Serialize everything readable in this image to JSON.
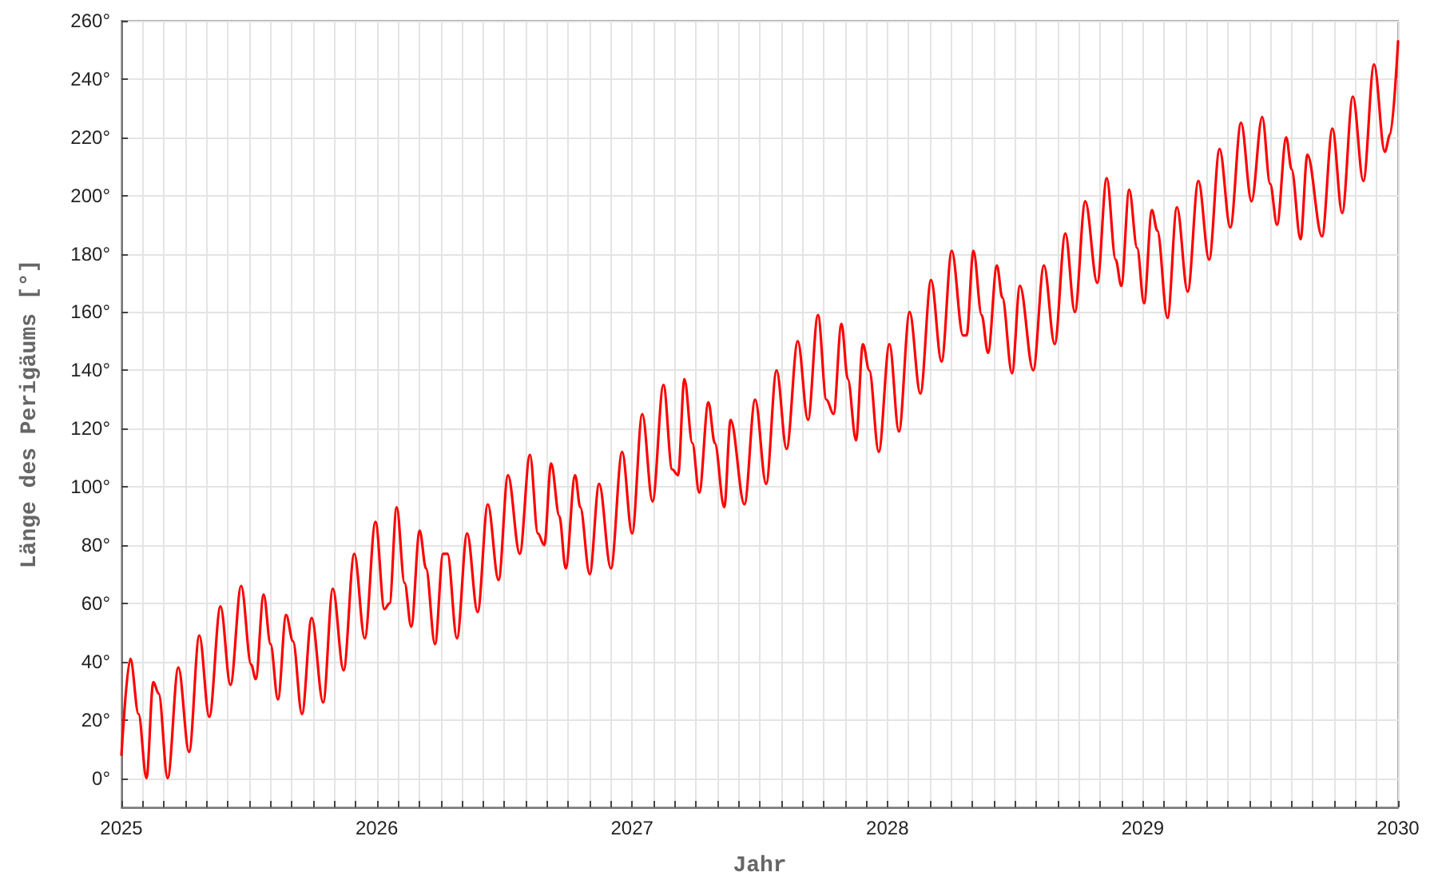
{
  "chart_data": {
    "type": "line",
    "xlabel": "Jahr",
    "ylabel": "Länge des Perigäums [°]",
    "color": "#ff0000",
    "grid": true,
    "xlim": [
      2025,
      2030
    ],
    "xticks": [
      2025,
      {
        "value": 2025.0833,
        "label": null
      },
      {
        "value": 2025.1667,
        "label": null
      },
      {
        "value": 2025.25,
        "label": null
      },
      {
        "value": 2025.3333,
        "label": null
      },
      {
        "value": 2025.4167,
        "label": null
      },
      {
        "value": 2025.5,
        "label": null
      },
      {
        "value": 2025.5833,
        "label": null
      },
      {
        "value": 2025.6667,
        "label": null
      },
      {
        "value": 2025.75,
        "label": null
      },
      {
        "value": 2025.8333,
        "label": null
      },
      {
        "value": 2025.9167,
        "label": null
      },
      2026,
      {
        "value": 2026.0833,
        "label": null
      },
      {
        "value": 2026.1667,
        "label": null
      },
      {
        "value": 2026.25,
        "label": null
      },
      {
        "value": 2026.3333,
        "label": null
      },
      {
        "value": 2026.4167,
        "label": null
      },
      {
        "value": 2026.5,
        "label": null
      },
      {
        "value": 2026.5833,
        "label": null
      },
      {
        "value": 2026.6667,
        "label": null
      },
      {
        "value": 2026.75,
        "label": null
      },
      {
        "value": 2026.8333,
        "label": null
      },
      {
        "value": 2026.9167,
        "label": null
      },
      2027,
      {
        "value": 2027.0833,
        "label": null
      },
      {
        "value": 2027.1667,
        "label": null
      },
      {
        "value": 2027.25,
        "label": null
      },
      {
        "value": 2027.3333,
        "label": null
      },
      {
        "value": 2027.4167,
        "label": null
      },
      {
        "value": 2027.5,
        "label": null
      },
      {
        "value": 2027.5833,
        "label": null
      },
      {
        "value": 2027.6667,
        "label": null
      },
      {
        "value": 2027.75,
        "label": null
      },
      {
        "value": 2027.8333,
        "label": null
      },
      {
        "value": 2027.9167,
        "label": null
      },
      2028,
      {
        "value": 2028.0833,
        "label": null
      },
      {
        "value": 2028.1667,
        "label": null
      },
      {
        "value": 2028.25,
        "label": null
      },
      {
        "value": 2028.3333,
        "label": null
      },
      {
        "value": 2028.4167,
        "label": null
      },
      {
        "value": 2028.5,
        "label": null
      },
      {
        "value": 2028.5833,
        "label": null
      },
      {
        "value": 2028.6667,
        "label": null
      },
      {
        "value": 2028.75,
        "label": null
      },
      {
        "value": 2028.8333,
        "label": null
      },
      {
        "value": 2028.9167,
        "label": null
      },
      2029,
      {
        "value": 2029.0833,
        "label": null
      },
      {
        "value": 2029.1667,
        "label": null
      },
      {
        "value": 2029.25,
        "label": null
      },
      {
        "value": 2029.3333,
        "label": null
      },
      {
        "value": 2029.4167,
        "label": null
      },
      {
        "value": 2029.5,
        "label": null
      },
      {
        "value": 2029.5833,
        "label": null
      },
      {
        "value": 2029.6667,
        "label": null
      },
      {
        "value": 2029.75,
        "label": null
      },
      {
        "value": 2029.8333,
        "label": null
      },
      {
        "value": 2029.9167,
        "label": null
      },
      2030
    ],
    "ylim": [
      -10,
      260
    ],
    "yticks": [
      {
        "value": 0,
        "label": "0°"
      },
      {
        "value": 20,
        "label": "20°"
      },
      {
        "value": 40,
        "label": "40°"
      },
      {
        "value": 60,
        "label": "60°"
      },
      {
        "value": 80,
        "label": "80°"
      },
      {
        "value": 100,
        "label": "100°"
      },
      {
        "value": 120,
        "label": "120°"
      },
      {
        "value": 140,
        "label": "140°"
      },
      {
        "value": 160,
        "label": "160°"
      },
      {
        "value": 180,
        "label": "180°"
      },
      {
        "value": 200,
        "label": "200°"
      },
      {
        "value": 220,
        "label": "220°"
      },
      {
        "value": 240,
        "label": "240°"
      },
      {
        "value": 260,
        "label": "260°"
      }
    ],
    "x": [
      2025.0,
      2025.035,
      2025.067,
      2025.098,
      2025.125,
      2025.146,
      2025.181,
      2025.223,
      2025.265,
      2025.305,
      2025.344,
      2025.388,
      2025.427,
      2025.469,
      2025.508,
      2025.526,
      2025.557,
      2025.584,
      2025.613,
      2025.645,
      2025.672,
      2025.707,
      2025.745,
      2025.79,
      2025.828,
      2025.87,
      2025.912,
      2025.953,
      2025.995,
      2026.03,
      2026.05,
      2026.078,
      2026.109,
      2026.135,
      2026.168,
      2026.193,
      2026.228,
      2026.26,
      2026.277,
      2026.314,
      2026.354,
      2026.395,
      2026.435,
      2026.477,
      2026.514,
      2026.56,
      2026.6,
      2026.631,
      2026.656,
      2026.683,
      2026.715,
      2026.74,
      2026.777,
      2026.797,
      2026.834,
      2026.871,
      2026.917,
      2026.961,
      2027.0,
      2027.04,
      2027.08,
      2027.123,
      2027.157,
      2027.18,
      2027.205,
      2027.236,
      2027.263,
      2027.299,
      2027.324,
      2027.361,
      2027.386,
      2027.44,
      2027.482,
      2027.525,
      2027.566,
      2027.605,
      2027.649,
      2027.689,
      2027.728,
      2027.761,
      2027.789,
      2027.82,
      2027.845,
      2027.877,
      2027.904,
      2027.929,
      2027.966,
      2028.008,
      2028.045,
      2028.087,
      2028.129,
      2028.171,
      2028.212,
      2028.252,
      2028.296,
      2028.31,
      2028.337,
      2028.369,
      2028.394,
      2028.429,
      2028.45,
      2028.488,
      2028.519,
      2028.571,
      2028.613,
      2028.655,
      2028.697,
      2028.734,
      2028.775,
      2028.822,
      2028.859,
      2028.894,
      2028.916,
      2028.947,
      2028.978,
      2029.005,
      2029.036,
      2029.057,
      2029.097,
      2029.134,
      2029.176,
      2029.218,
      2029.26,
      2029.301,
      2029.343,
      2029.385,
      2029.426,
      2029.468,
      2029.499,
      2029.526,
      2029.562,
      2029.583,
      2029.618,
      2029.645,
      2029.702,
      2029.743,
      2029.781,
      2029.823,
      2029.864,
      2029.906,
      2029.948,
      2029.969,
      2030.0
    ],
    "values": [
      8,
      41,
      22,
      0,
      33,
      29,
      0,
      38,
      9,
      49,
      21,
      59,
      32,
      66,
      39,
      34,
      63,
      46,
      27,
      56,
      47,
      22,
      55,
      26,
      65,
      37,
      77,
      48,
      88,
      58,
      60,
      93,
      67,
      52,
      85,
      72,
      46,
      77,
      77,
      48,
      84,
      57,
      94,
      68,
      104,
      77,
      111,
      84,
      80,
      108,
      90,
      72,
      104,
      93,
      70,
      101,
      72,
      112,
      84,
      125,
      95,
      135,
      106,
      104,
      137,
      115,
      98,
      129,
      115,
      93,
      123,
      94,
      130,
      101,
      140,
      113,
      150,
      123,
      159,
      130,
      125,
      156,
      137,
      116,
      149,
      140,
      112,
      149,
      119,
      160,
      132,
      171,
      143,
      181,
      152,
      152,
      181,
      159,
      146,
      176,
      165,
      139,
      169,
      140,
      176,
      149,
      187,
      160,
      198,
      170,
      206,
      178,
      169,
      202,
      182,
      163,
      195,
      188,
      158,
      196,
      167,
      205,
      178,
      216,
      189,
      225,
      198,
      227,
      204,
      190,
      220,
      209,
      185,
      214,
      186,
      223,
      194,
      234,
      205,
      245,
      215,
      221,
      253
    ]
  }
}
